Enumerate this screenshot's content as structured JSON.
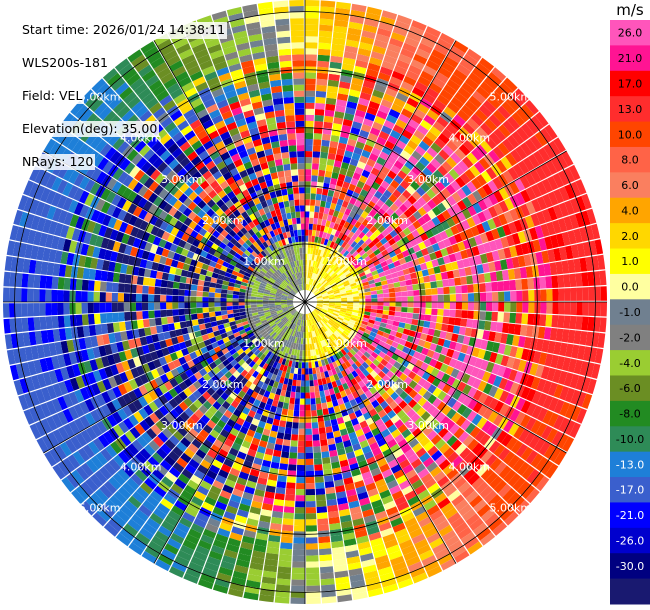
{
  "info": {
    "start_time": "Start time: 2026/01/24 14:38:11",
    "instrument": "WLS200s-181",
    "field": "Field: VEL",
    "elevation": "Elevation(deg): 35.00",
    "nrays": "NRays: 120"
  },
  "chart_data": {
    "type": "heatmap",
    "projection": "polar-ppi",
    "field": "VEL",
    "unit": "m/s",
    "nrays": 120,
    "max_range_km": 5.2,
    "range_rings_km": [
      1,
      2,
      3,
      4,
      5
    ],
    "ring_labels": [
      "1.00km",
      "2.00km",
      "3.00km",
      "4.00km",
      "5.00km"
    ],
    "colorbar": {
      "ticks": [
        "26.0",
        "21.0",
        "17.0",
        "13.0",
        "10.0",
        "8.0",
        "6.0",
        "4.0",
        "2.0",
        "1.0",
        "0.0",
        "-1.0",
        "-2.0",
        "-4.0",
        "-6.0",
        "-8.0",
        "-10.0",
        "-13.0",
        "-17.0",
        "-21.0",
        "-26.0",
        "-30.0"
      ],
      "bins": [
        {
          "color": "#ff55bb",
          "lo": 26,
          "hi": 30
        },
        {
          "color": "#ff1493",
          "lo": 21,
          "hi": 26
        },
        {
          "color": "#ff0000",
          "lo": 17,
          "hi": 21
        },
        {
          "color": "#ff2d2d",
          "lo": 13,
          "hi": 17
        },
        {
          "color": "#ff4500",
          "lo": 10,
          "hi": 13
        },
        {
          "color": "#ff6347",
          "lo": 8,
          "hi": 10
        },
        {
          "color": "#fa7f5f",
          "lo": 6,
          "hi": 8
        },
        {
          "color": "#ffa500",
          "lo": 4,
          "hi": 6
        },
        {
          "color": "#ffd700",
          "lo": 2,
          "hi": 4
        },
        {
          "color": "#ffff00",
          "lo": 1,
          "hi": 2
        },
        {
          "color": "#ffffa0",
          "lo": 0,
          "hi": 1
        },
        {
          "color": "#708090",
          "lo": -1,
          "hi": 0
        },
        {
          "color": "#808080",
          "lo": -2,
          "hi": -1
        },
        {
          "color": "#9acd32",
          "lo": -4,
          "hi": -2
        },
        {
          "color": "#6b8e23",
          "lo": -6,
          "hi": -4
        },
        {
          "color": "#228b22",
          "lo": -8,
          "hi": -6
        },
        {
          "color": "#2e8b57",
          "lo": -10,
          "hi": -8
        },
        {
          "color": "#1e7fd8",
          "lo": -13,
          "hi": -10
        },
        {
          "color": "#3a5fcd",
          "lo": -17,
          "hi": -13
        },
        {
          "color": "#0000ff",
          "lo": -21,
          "hi": -17
        },
        {
          "color": "#0000cd",
          "lo": -26,
          "hi": -21
        },
        {
          "color": "#000080",
          "lo": -30,
          "hi": -26
        },
        {
          "color": "#191970",
          "lo": -34,
          "hi": -30
        }
      ]
    }
  }
}
